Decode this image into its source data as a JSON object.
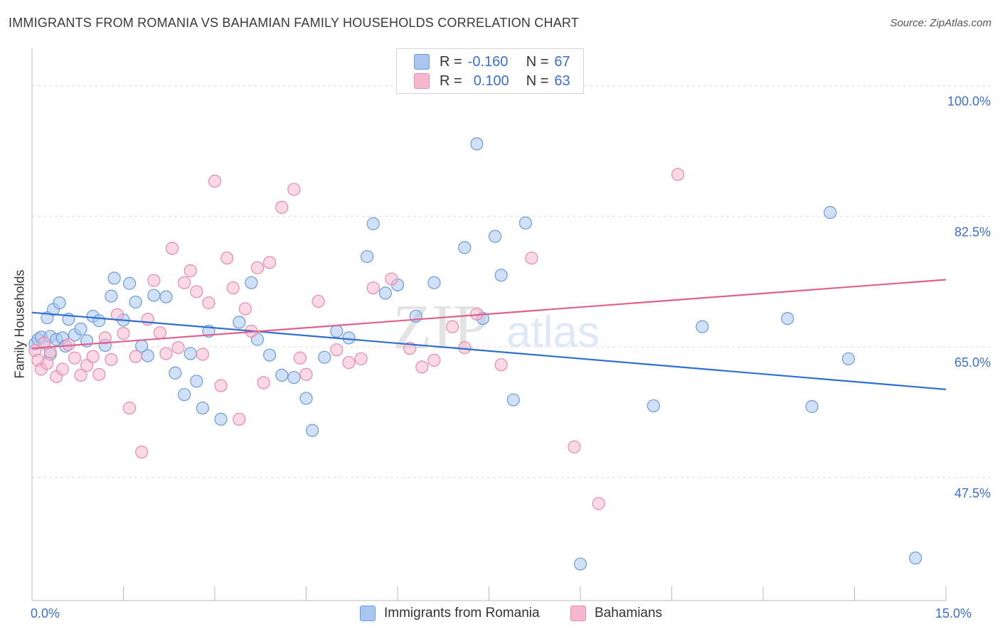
{
  "header": {
    "title": "IMMIGRANTS FROM ROMANIA VS BAHAMIAN FAMILY HOUSEHOLDS CORRELATION CHART",
    "source": "Source: ZipAtlas.com"
  },
  "legend": {
    "series": [
      {
        "r_label": "R =",
        "r_value": "-0.160",
        "n_label": "N =",
        "n_value": "67"
      },
      {
        "r_label": "R =",
        "r_value": "0.100",
        "n_label": "N =",
        "n_value": "63"
      }
    ]
  },
  "bottom_legend": [
    "Immigrants from Romania",
    "Bahamians"
  ],
  "colors": {
    "blue_fill": "#a9c6f0",
    "blue_stroke": "#6a9bdc",
    "blue_line": "#2f6fd0",
    "pink_fill": "#f6b8cd",
    "pink_stroke": "#e88aab",
    "pink_line": "#e0608e",
    "tick_label": "#3b6fd0",
    "grid": "#dddddd",
    "watermark": "#e3e3e3"
  },
  "watermark": {
    "zip": "ZIP",
    "atlas": "atlas"
  },
  "chart_data": {
    "type": "scatter",
    "title": "IMMIGRANTS FROM ROMANIA VS BAHAMIAN FAMILY HOUSEHOLDS CORRELATION CHART",
    "xlabel": "",
    "ylabel": "Family Households",
    "xlim": [
      0,
      15
    ],
    "ylim": [
      31,
      105
    ],
    "x_tick_labels": [
      {
        "value": 0,
        "label": "0.0%"
      },
      {
        "value": 15,
        "label": "15.0%"
      }
    ],
    "y_tick_labels": [
      {
        "value": 100,
        "label": "100.0%"
      },
      {
        "value": 82.5,
        "label": "82.5%"
      },
      {
        "value": 65,
        "label": "65.0%"
      },
      {
        "value": 47.5,
        "label": "47.5%"
      }
    ],
    "grid": true,
    "legend_position": "top-center",
    "series": [
      {
        "name": "Immigrants from Romania",
        "r": -0.16,
        "n": 67,
        "trend": {
          "x": [
            0,
            15
          ],
          "y": [
            69.6,
            59.3
          ]
        },
        "points": [
          [
            0.05,
            65.4
          ],
          [
            0.1,
            66.0
          ],
          [
            0.15,
            66.3
          ],
          [
            0.2,
            65.5
          ],
          [
            0.25,
            68.9
          ],
          [
            0.3,
            66.4
          ],
          [
            0.35,
            70.0
          ],
          [
            0.4,
            66.0
          ],
          [
            0.45,
            70.9
          ],
          [
            0.5,
            66.2
          ],
          [
            0.55,
            65.1
          ],
          [
            0.6,
            68.7
          ],
          [
            0.7,
            66.6
          ],
          [
            0.8,
            67.4
          ],
          [
            0.9,
            65.8
          ],
          [
            1.0,
            69.1
          ],
          [
            1.1,
            68.5
          ],
          [
            1.2,
            65.2
          ],
          [
            1.3,
            71.8
          ],
          [
            1.35,
            74.2
          ],
          [
            1.5,
            68.6
          ],
          [
            1.6,
            73.5
          ],
          [
            1.7,
            71.0
          ],
          [
            1.8,
            65.1
          ],
          [
            1.9,
            63.8
          ],
          [
            2.0,
            71.9
          ],
          [
            2.2,
            71.7
          ],
          [
            2.35,
            61.5
          ],
          [
            2.5,
            58.6
          ],
          [
            2.6,
            64.1
          ],
          [
            2.7,
            60.4
          ],
          [
            2.8,
            56.8
          ],
          [
            2.9,
            67.1
          ],
          [
            3.1,
            55.3
          ],
          [
            3.4,
            68.3
          ],
          [
            3.6,
            73.6
          ],
          [
            3.7,
            66.0
          ],
          [
            3.9,
            63.9
          ],
          [
            4.1,
            61.2
          ],
          [
            4.3,
            60.9
          ],
          [
            4.5,
            58.1
          ],
          [
            4.6,
            53.8
          ],
          [
            4.8,
            63.6
          ],
          [
            5.0,
            67.1
          ],
          [
            5.2,
            66.2
          ],
          [
            5.5,
            77.1
          ],
          [
            5.6,
            81.5
          ],
          [
            5.8,
            72.2
          ],
          [
            6.0,
            73.3
          ],
          [
            6.3,
            69.1
          ],
          [
            6.6,
            73.6
          ],
          [
            7.1,
            78.3
          ],
          [
            7.3,
            92.2
          ],
          [
            7.4,
            68.8
          ],
          [
            7.6,
            79.8
          ],
          [
            7.7,
            74.6
          ],
          [
            7.9,
            57.9
          ],
          [
            8.1,
            81.6
          ],
          [
            9.0,
            35.9
          ],
          [
            10.2,
            57.1
          ],
          [
            11.0,
            67.7
          ],
          [
            12.4,
            68.8
          ],
          [
            12.8,
            57.0
          ],
          [
            13.1,
            83.0
          ],
          [
            13.4,
            63.4
          ],
          [
            14.5,
            36.7
          ],
          [
            0.3,
            64.0
          ]
        ]
      },
      {
        "name": "Bahamians",
        "r": 0.1,
        "n": 63,
        "trend": {
          "x": [
            0,
            15
          ],
          "y": [
            64.8,
            74.0
          ]
        },
        "points": [
          [
            0.05,
            64.5
          ],
          [
            0.1,
            63.2
          ],
          [
            0.15,
            62.0
          ],
          [
            0.2,
            65.5
          ],
          [
            0.3,
            64.3
          ],
          [
            0.4,
            61.0
          ],
          [
            0.5,
            62.0
          ],
          [
            0.6,
            65.3
          ],
          [
            0.7,
            63.5
          ],
          [
            0.8,
            61.2
          ],
          [
            0.9,
            62.5
          ],
          [
            1.0,
            63.7
          ],
          [
            1.1,
            61.3
          ],
          [
            1.2,
            66.2
          ],
          [
            1.3,
            63.3
          ],
          [
            1.4,
            69.3
          ],
          [
            1.5,
            66.8
          ],
          [
            1.6,
            56.8
          ],
          [
            1.7,
            63.7
          ],
          [
            1.8,
            50.9
          ],
          [
            1.9,
            68.7
          ],
          [
            2.0,
            73.9
          ],
          [
            2.1,
            66.9
          ],
          [
            2.2,
            64.1
          ],
          [
            2.3,
            78.2
          ],
          [
            2.4,
            64.9
          ],
          [
            2.5,
            73.6
          ],
          [
            2.6,
            75.2
          ],
          [
            2.7,
            72.4
          ],
          [
            2.8,
            64.0
          ],
          [
            2.9,
            70.9
          ],
          [
            3.0,
            87.2
          ],
          [
            3.1,
            59.8
          ],
          [
            3.2,
            76.9
          ],
          [
            3.3,
            72.9
          ],
          [
            3.4,
            55.3
          ],
          [
            3.5,
            70.1
          ],
          [
            3.6,
            67.1
          ],
          [
            3.7,
            75.6
          ],
          [
            3.8,
            60.2
          ],
          [
            3.9,
            76.3
          ],
          [
            4.1,
            83.7
          ],
          [
            4.3,
            86.1
          ],
          [
            4.4,
            63.5
          ],
          [
            4.5,
            61.3
          ],
          [
            4.7,
            71.1
          ],
          [
            5.0,
            64.6
          ],
          [
            5.2,
            62.9
          ],
          [
            5.4,
            63.4
          ],
          [
            5.6,
            72.9
          ],
          [
            5.9,
            74.1
          ],
          [
            6.2,
            64.8
          ],
          [
            6.4,
            62.3
          ],
          [
            6.6,
            63.2
          ],
          [
            6.9,
            67.7
          ],
          [
            7.1,
            64.9
          ],
          [
            7.3,
            69.4
          ],
          [
            7.7,
            62.6
          ],
          [
            8.2,
            76.9
          ],
          [
            8.9,
            51.6
          ],
          [
            9.3,
            44.0
          ],
          [
            10.6,
            88.1
          ],
          [
            0.25,
            62.8
          ]
        ]
      }
    ]
  }
}
